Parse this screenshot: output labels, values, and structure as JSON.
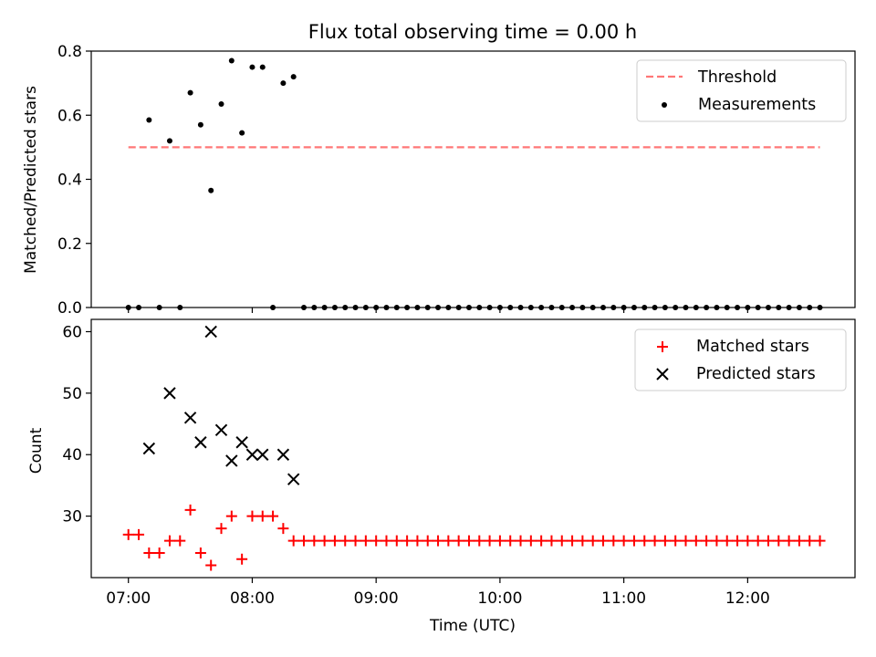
{
  "chart_data": [
    {
      "type": "scatter",
      "title": "Flux total observing time = 0.00 h",
      "xlabel": "",
      "ylabel": "Matched/Predicted stars",
      "ylim": [
        0,
        0.8
      ],
      "yticks": [
        "0.0",
        "0.2",
        "0.4",
        "0.6",
        "0.8"
      ],
      "legend_position": "top-right",
      "series": [
        {
          "name": "Threshold",
          "style": "dashed-line",
          "color": "#ff7777",
          "points": [
            [
              "07:00",
              0.5
            ],
            [
              "12:35",
              0.5
            ]
          ]
        },
        {
          "name": "Measurements",
          "style": "dot",
          "color": "#000000",
          "points": [
            [
              "07:00",
              0.0
            ],
            [
              "07:05",
              0.0
            ],
            [
              "07:10",
              0.585
            ],
            [
              "07:15",
              0.0
            ],
            [
              "07:20",
              0.52
            ],
            [
              "07:25",
              0.0
            ],
            [
              "07:30",
              0.67
            ],
            [
              "07:35",
              0.57
            ],
            [
              "07:40",
              0.365
            ],
            [
              "07:45",
              0.635
            ],
            [
              "07:50",
              0.77
            ],
            [
              "07:55",
              0.545
            ],
            [
              "08:00",
              0.75
            ],
            [
              "08:05",
              0.75
            ],
            [
              "08:10",
              0.0
            ],
            [
              "08:15",
              0.7
            ],
            [
              "08:20",
              0.72
            ],
            [
              "08:25",
              0.0
            ],
            [
              "08:30",
              0.0
            ],
            [
              "08:35",
              0.0
            ],
            [
              "08:40",
              0.0
            ],
            [
              "08:45",
              0.0
            ],
            [
              "08:50",
              0.0
            ],
            [
              "08:55",
              0.0
            ],
            [
              "09:00",
              0.0
            ],
            [
              "09:05",
              0.0
            ],
            [
              "09:10",
              0.0
            ],
            [
              "09:15",
              0.0
            ],
            [
              "09:20",
              0.0
            ],
            [
              "09:25",
              0.0
            ],
            [
              "09:30",
              0.0
            ],
            [
              "09:35",
              0.0
            ],
            [
              "09:40",
              0.0
            ],
            [
              "09:45",
              0.0
            ],
            [
              "09:50",
              0.0
            ],
            [
              "09:55",
              0.0
            ],
            [
              "10:00",
              0.0
            ],
            [
              "10:05",
              0.0
            ],
            [
              "10:10",
              0.0
            ],
            [
              "10:15",
              0.0
            ],
            [
              "10:20",
              0.0
            ],
            [
              "10:25",
              0.0
            ],
            [
              "10:30",
              0.0
            ],
            [
              "10:35",
              0.0
            ],
            [
              "10:40",
              0.0
            ],
            [
              "10:45",
              0.0
            ],
            [
              "10:50",
              0.0
            ],
            [
              "10:55",
              0.0
            ],
            [
              "11:00",
              0.0
            ],
            [
              "11:05",
              0.0
            ],
            [
              "11:10",
              0.0
            ],
            [
              "11:15",
              0.0
            ],
            [
              "11:20",
              0.0
            ],
            [
              "11:25",
              0.0
            ],
            [
              "11:30",
              0.0
            ],
            [
              "11:35",
              0.0
            ],
            [
              "11:40",
              0.0
            ],
            [
              "11:45",
              0.0
            ],
            [
              "11:50",
              0.0
            ],
            [
              "11:55",
              0.0
            ],
            [
              "12:00",
              0.0
            ],
            [
              "12:05",
              0.0
            ],
            [
              "12:10",
              0.0
            ],
            [
              "12:15",
              0.0
            ],
            [
              "12:20",
              0.0
            ],
            [
              "12:25",
              0.0
            ],
            [
              "12:30",
              0.0
            ],
            [
              "12:35",
              0.0
            ]
          ]
        }
      ]
    },
    {
      "type": "scatter",
      "title": "",
      "xlabel": "Time (UTC)",
      "ylabel": "Count",
      "xlim": [
        "06:42",
        "12:52"
      ],
      "ylim": [
        20,
        62
      ],
      "xticks": [
        "07:00",
        "08:00",
        "09:00",
        "10:00",
        "11:00",
        "12:00"
      ],
      "yticks": [
        "30",
        "40",
        "50",
        "60"
      ],
      "legend_position": "top-right",
      "series": [
        {
          "name": "Matched stars",
          "marker": "plus",
          "color": "#ff0000",
          "points": [
            [
              "07:00",
              27
            ],
            [
              "07:05",
              27
            ],
            [
              "07:10",
              24
            ],
            [
              "07:15",
              24
            ],
            [
              "07:20",
              26
            ],
            [
              "07:25",
              26
            ],
            [
              "07:30",
              31
            ],
            [
              "07:35",
              24
            ],
            [
              "07:40",
              22
            ],
            [
              "07:45",
              28
            ],
            [
              "07:50",
              30
            ],
            [
              "07:55",
              23
            ],
            [
              "08:00",
              30
            ],
            [
              "08:05",
              30
            ],
            [
              "08:10",
              30
            ],
            [
              "08:15",
              28
            ],
            [
              "08:20",
              26
            ],
            [
              "08:25",
              26
            ],
            [
              "08:30",
              26
            ],
            [
              "08:35",
              26
            ],
            [
              "08:40",
              26
            ],
            [
              "08:45",
              26
            ],
            [
              "08:50",
              26
            ],
            [
              "08:55",
              26
            ],
            [
              "09:00",
              26
            ],
            [
              "09:05",
              26
            ],
            [
              "09:10",
              26
            ],
            [
              "09:15",
              26
            ],
            [
              "09:20",
              26
            ],
            [
              "09:25",
              26
            ],
            [
              "09:30",
              26
            ],
            [
              "09:35",
              26
            ],
            [
              "09:40",
              26
            ],
            [
              "09:45",
              26
            ],
            [
              "09:50",
              26
            ],
            [
              "09:55",
              26
            ],
            [
              "10:00",
              26
            ],
            [
              "10:05",
              26
            ],
            [
              "10:10",
              26
            ],
            [
              "10:15",
              26
            ],
            [
              "10:20",
              26
            ],
            [
              "10:25",
              26
            ],
            [
              "10:30",
              26
            ],
            [
              "10:35",
              26
            ],
            [
              "10:40",
              26
            ],
            [
              "10:45",
              26
            ],
            [
              "10:50",
              26
            ],
            [
              "10:55",
              26
            ],
            [
              "11:00",
              26
            ],
            [
              "11:05",
              26
            ],
            [
              "11:10",
              26
            ],
            [
              "11:15",
              26
            ],
            [
              "11:20",
              26
            ],
            [
              "11:25",
              26
            ],
            [
              "11:30",
              26
            ],
            [
              "11:35",
              26
            ],
            [
              "11:40",
              26
            ],
            [
              "11:45",
              26
            ],
            [
              "11:50",
              26
            ],
            [
              "11:55",
              26
            ],
            [
              "12:00",
              26
            ],
            [
              "12:05",
              26
            ],
            [
              "12:10",
              26
            ],
            [
              "12:15",
              26
            ],
            [
              "12:20",
              26
            ],
            [
              "12:25",
              26
            ],
            [
              "12:30",
              26
            ],
            [
              "12:35",
              26
            ]
          ]
        },
        {
          "name": "Predicted stars",
          "marker": "x",
          "color": "#000000",
          "points": [
            [
              "07:10",
              41
            ],
            [
              "07:20",
              50
            ],
            [
              "07:30",
              46
            ],
            [
              "07:35",
              42
            ],
            [
              "07:40",
              60
            ],
            [
              "07:45",
              44
            ],
            [
              "07:50",
              39
            ],
            [
              "07:55",
              42
            ],
            [
              "08:00",
              40
            ],
            [
              "08:05",
              40
            ],
            [
              "08:15",
              40
            ],
            [
              "08:20",
              36
            ]
          ]
        }
      ]
    }
  ]
}
